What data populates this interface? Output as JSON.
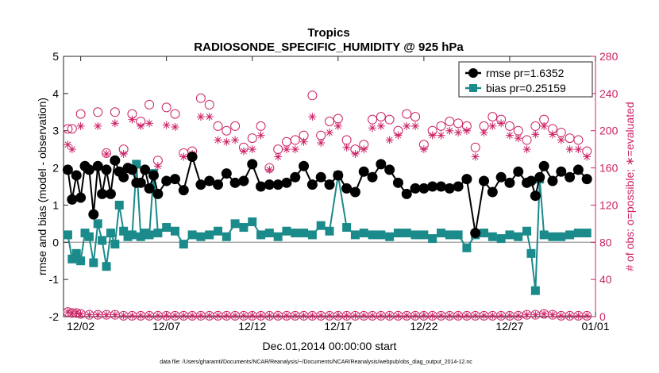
{
  "chart_data": {
    "type": "line",
    "title": "Tropics",
    "subtitle": "RADIOSONDE_SPECIFIC_HUMIDITY @ 925 hPa",
    "xlabel": "Dec.01,2014 00:00:00 start",
    "ylabel_left": "rmse and bias (model - observation)",
    "ylabel_right": "# of obs: o=possible; ∗=evaluated",
    "footer": "data file: /Users/gharamti/Documents/NCAR/Reanalysis/~/Documents/NCAR/Reanalysis/webpub/obs_diag_output_2014-12.nc",
    "xlim": [
      1,
      32
    ],
    "x_ticks": [
      2,
      7,
      12,
      17,
      22,
      27,
      32
    ],
    "x_tick_labels": [
      "12/02",
      "12/07",
      "12/12",
      "12/17",
      "12/22",
      "12/27",
      "01/01"
    ],
    "ylim_left": [
      -2,
      5
    ],
    "y_ticks_left": [
      -2,
      -1,
      0,
      1,
      2,
      3,
      4,
      5
    ],
    "y_tick_labels_left": [
      "-2",
      "-1",
      "0",
      "1",
      "2",
      "3",
      "4",
      "5"
    ],
    "ylim_right": [
      0,
      280
    ],
    "y_ticks_right": [
      0,
      40,
      80,
      120,
      160,
      200,
      240,
      280
    ],
    "y_tick_labels_right": [
      "0",
      "40",
      "80",
      "120",
      "160",
      "200",
      "240",
      "280"
    ],
    "legend": [
      "rmse pr=1.6352",
      "bias pr=0.25159"
    ],
    "legend_position": "top-right",
    "colors": {
      "rmse": "#000000",
      "bias": "#1a8a8a",
      "obs": "#cc2266",
      "zero": "#999999"
    },
    "series": [
      {
        "name": "rmse",
        "x": [
          1.25,
          1.5,
          1.75,
          2,
          2.25,
          2.5,
          2.75,
          3,
          3.25,
          3.5,
          3.75,
          4,
          4.25,
          4.5,
          4.75,
          5,
          5.25,
          5.5,
          5.75,
          6,
          6.25,
          6.5,
          7,
          7.5,
          8,
          8.5,
          9,
          9.5,
          10,
          10.5,
          11,
          11.5,
          12,
          12.5,
          13,
          13.5,
          14,
          14.5,
          15,
          15.5,
          16,
          16.5,
          17,
          17.5,
          18,
          18.5,
          19,
          19.5,
          20,
          20.5,
          21,
          21.5,
          22,
          22.5,
          23,
          23.5,
          24,
          24.5,
          25,
          25.5,
          26,
          26.5,
          27,
          27.5,
          28,
          28.25,
          28.5,
          28.75,
          29,
          29.5,
          30,
          30.5,
          31,
          31.5
        ],
        "values": [
          1.95,
          1.15,
          1.8,
          1.2,
          2.05,
          1.95,
          0.75,
          2.05,
          1.3,
          1.95,
          1.3,
          2.2,
          1.9,
          1.75,
          2.0,
          1.95,
          1.6,
          1.6,
          1.95,
          1.45,
          1.8,
          1.3,
          1.65,
          1.7,
          1.4,
          2.3,
          1.55,
          1.65,
          1.55,
          1.85,
          1.6,
          1.65,
          2.1,
          1.5,
          1.55,
          1.55,
          1.6,
          1.75,
          2.05,
          1.55,
          1.75,
          1.55,
          1.8,
          1.45,
          1.35,
          1.9,
          1.75,
          2.1,
          1.95,
          1.6,
          1.3,
          1.45,
          1.45,
          1.5,
          1.5,
          1.45,
          1.5,
          1.7,
          0.25,
          1.65,
          1.35,
          1.75,
          1.6,
          1.9,
          1.6,
          1.65,
          1.25,
          1.75,
          2.05,
          1.65,
          1.9,
          1.75,
          1.95,
          1.7
        ]
      },
      {
        "name": "bias",
        "x": [
          1.25,
          1.5,
          1.75,
          2,
          2.25,
          2.5,
          2.75,
          3,
          3.25,
          3.5,
          3.75,
          4,
          4.25,
          4.5,
          4.75,
          5,
          5.25,
          5.5,
          5.75,
          6,
          6.25,
          6.5,
          7,
          7.5,
          8,
          8.5,
          9,
          9.5,
          10,
          10.5,
          11,
          11.5,
          12,
          12.5,
          13,
          13.5,
          14,
          14.5,
          15,
          15.5,
          16,
          16.5,
          17,
          17.5,
          18,
          18.5,
          19,
          19.5,
          20,
          20.5,
          21,
          21.5,
          22,
          22.5,
          23,
          23.5,
          24,
          24.5,
          25,
          25.5,
          26,
          26.5,
          27,
          27.5,
          28,
          28.25,
          28.5,
          28.75,
          29,
          29.5,
          30,
          30.5,
          31,
          31.5
        ],
        "values": [
          0.2,
          -0.45,
          -0.3,
          -0.5,
          0.25,
          0.15,
          -0.55,
          0.5,
          0.05,
          -0.65,
          0.25,
          -0.05,
          1.0,
          0.3,
          0.15,
          0.2,
          2.1,
          0.15,
          0.25,
          0.2,
          1.85,
          0.25,
          0.4,
          0.3,
          -0.05,
          0.2,
          0.15,
          0.2,
          0.3,
          0.15,
          0.5,
          0.4,
          0.55,
          0.2,
          0.25,
          0.15,
          0.3,
          0.25,
          0.25,
          0.2,
          0.45,
          0.3,
          1.8,
          0.4,
          0.2,
          0.25,
          0.2,
          0.2,
          0.15,
          0.25,
          0.25,
          0.2,
          0.2,
          0.1,
          0.25,
          0.2,
          0.2,
          -0.15,
          0.2,
          0.25,
          0.15,
          0.1,
          0.2,
          0.15,
          0.3,
          -0.3,
          -1.3,
          1.7,
          0.2,
          0.15,
          0.15,
          0.2,
          0.25,
          0.25
        ]
      },
      {
        "name": "obs possible",
        "marker": "circle",
        "x": [
          1.25,
          1.5,
          2,
          3,
          3.5,
          4,
          4.5,
          5,
          5.5,
          6,
          6.5,
          7,
          7.5,
          8,
          8.5,
          9,
          9.5,
          10,
          10.5,
          11,
          11.5,
          12,
          12.5,
          13,
          13.5,
          14,
          14.5,
          15,
          15.5,
          16,
          16.5,
          17,
          17.5,
          18,
          18.5,
          19,
          19.5,
          20,
          20.5,
          21,
          21.5,
          22,
          22.5,
          23,
          23.5,
          24,
          24.5,
          25,
          25.5,
          26,
          26.5,
          27,
          27.5,
          28,
          28.5,
          29,
          29.5,
          30,
          30.5,
          31,
          31.5
        ],
        "values": [
          202,
          202,
          218,
          220,
          176,
          220,
          180,
          218,
          210,
          228,
          168,
          225,
          218,
          176,
          178,
          235,
          228,
          205,
          200,
          205,
          182,
          192,
          205,
          160,
          180,
          188,
          190,
          195,
          238,
          195,
          210,
          213,
          190,
          180,
          185,
          212,
          215,
          212,
          200,
          218,
          215,
          185,
          200,
          205,
          210,
          208,
          205,
          182,
          205,
          215,
          212,
          205,
          200,
          190,
          205,
          212,
          202,
          198,
          192,
          190,
          178
        ]
      },
      {
        "name": "obs evaluated",
        "marker": "asterisk",
        "x": [
          1.25,
          1.5,
          2,
          3,
          3.5,
          4,
          4.5,
          5,
          5.5,
          6,
          6.5,
          7,
          7.5,
          8,
          8.5,
          9,
          9.5,
          10,
          10.5,
          11,
          11.5,
          12,
          12.5,
          13,
          13.5,
          14,
          14.5,
          15,
          15.5,
          16,
          16.5,
          17,
          17.5,
          18,
          18.5,
          19,
          19.5,
          20,
          20.5,
          21,
          21.5,
          22,
          22.5,
          23,
          23.5,
          24,
          24.5,
          25,
          25.5,
          26,
          26.5,
          27,
          27.5,
          28,
          28.5,
          29,
          29.5,
          30,
          30.5,
          31,
          31.5
        ],
        "values": [
          185,
          180,
          205,
          205,
          175,
          208,
          175,
          212,
          205,
          208,
          162,
          206,
          204,
          172,
          175,
          215,
          215,
          190,
          188,
          190,
          178,
          180,
          195,
          158,
          172,
          180,
          180,
          188,
          215,
          187,
          198,
          205,
          182,
          175,
          180,
          203,
          205,
          190,
          195,
          205,
          205,
          180,
          195,
          195,
          200,
          198,
          200,
          172,
          198,
          205,
          208,
          195,
          192,
          180,
          196,
          205,
          196,
          190,
          180,
          180,
          172
        ]
      },
      {
        "name": "obs near zero possible",
        "marker": "circle",
        "x": [
          1.25,
          1.5,
          1.75,
          2,
          2.5,
          3,
          3.5,
          4,
          4.5,
          5,
          5.5,
          6,
          6.5,
          7,
          7.5,
          8,
          8.5,
          9,
          9.5,
          10,
          10.5,
          11,
          11.5,
          12,
          12.5,
          13,
          13.5,
          14,
          14.5,
          15,
          15.5,
          16,
          16.5,
          17,
          17.5,
          18,
          18.5,
          19,
          19.5,
          20,
          20.5,
          21,
          21.5,
          22,
          22.5,
          23,
          23.5,
          24,
          24.5,
          25,
          25.5,
          26,
          26.5,
          27,
          27.5,
          28,
          28.5,
          29,
          29.5,
          30,
          30.5,
          31,
          31.5
        ],
        "values": [
          5,
          4,
          4,
          3,
          2,
          2,
          2,
          2,
          1,
          1,
          1,
          1,
          1,
          1,
          1,
          1,
          1,
          1,
          1,
          1,
          1,
          1,
          1,
          1,
          1,
          1,
          1,
          1,
          1,
          1,
          1,
          1,
          1,
          1,
          1,
          1,
          1,
          1,
          1,
          1,
          1,
          1,
          1,
          1,
          1,
          1,
          1,
          1,
          1,
          1,
          1,
          1,
          1,
          1,
          1,
          2,
          2,
          3,
          2,
          1,
          1,
          1,
          1
        ]
      }
    ]
  }
}
